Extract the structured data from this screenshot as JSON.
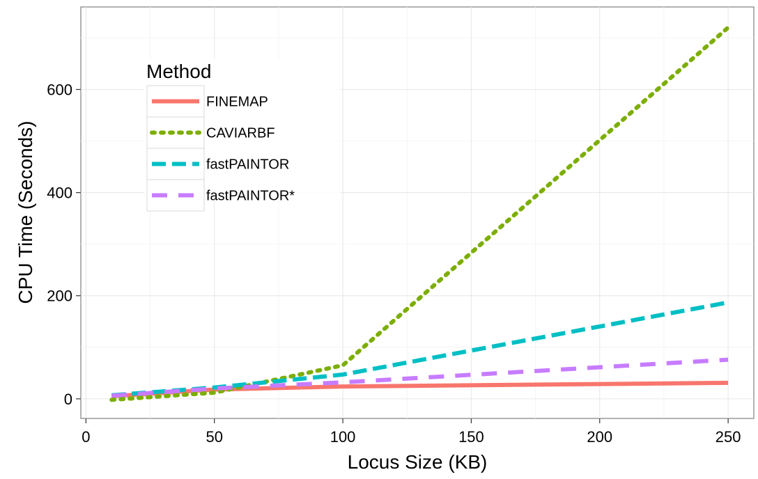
{
  "chart_data": {
    "type": "line",
    "xlabel": "Locus Size (KB)",
    "ylabel": "CPU Time (Seconds)",
    "xlim": [
      -2,
      260
    ],
    "ylim": [
      -38,
      760
    ],
    "x_ticks": [
      0,
      50,
      100,
      150,
      200,
      250
    ],
    "y_ticks": [
      0,
      200,
      400,
      600
    ],
    "grid": true,
    "legend_title": "Method",
    "legend_position": "top-left",
    "series": [
      {
        "name": "FINEMAP",
        "color": "#F8766D",
        "dash": "solid",
        "x": [
          10,
          50,
          100,
          250
        ],
        "y": [
          5,
          18,
          24,
          31
        ]
      },
      {
        "name": "CAVIARBF",
        "color": "#7CAE00",
        "dash": "dotted",
        "x": [
          10,
          50,
          100,
          250
        ],
        "y": [
          -2,
          12,
          65,
          720
        ]
      },
      {
        "name": "fastPAINTOR",
        "color": "#00BFC4",
        "dash": "dashed",
        "x": [
          10,
          50,
          100,
          250
        ],
        "y": [
          7,
          22,
          47,
          187
        ]
      },
      {
        "name": "fastPAINTOR*",
        "color": "#C77CFF",
        "dash": "longdash",
        "x": [
          10,
          50,
          100,
          250
        ],
        "y": [
          6,
          20,
          32,
          76
        ]
      }
    ]
  }
}
